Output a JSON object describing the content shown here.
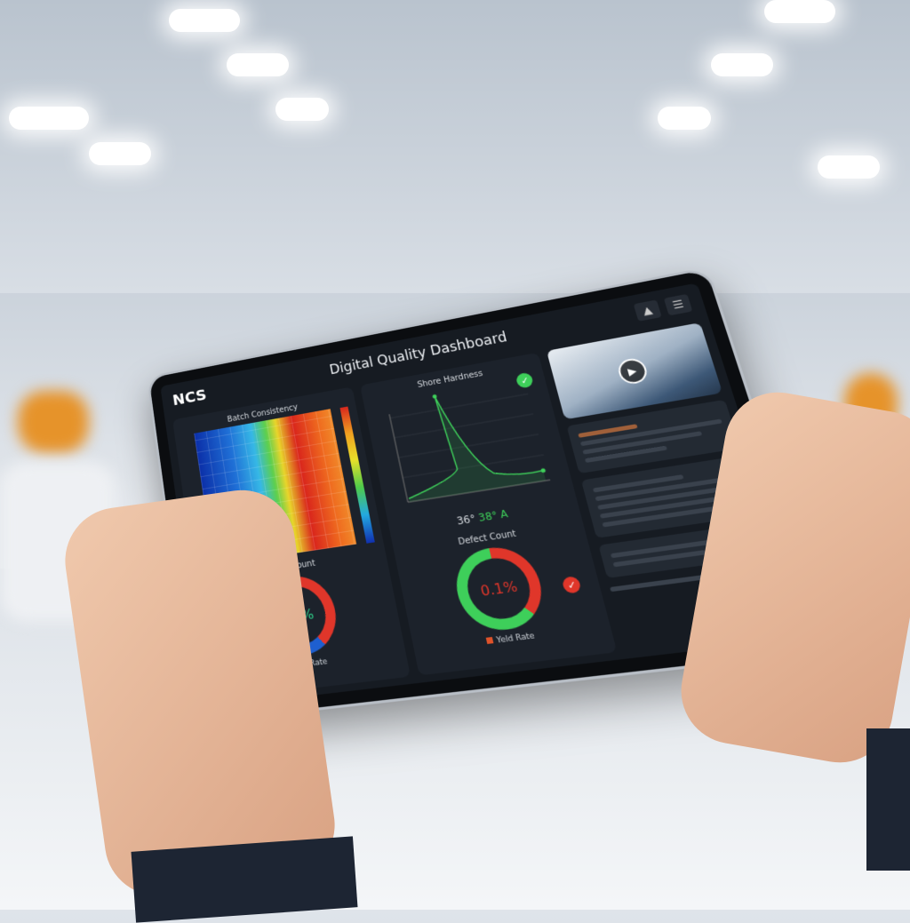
{
  "header": {
    "logo": "NCS",
    "title": "Digital Quality Dashboard",
    "icons": [
      "bell-icon",
      "menu-icon"
    ]
  },
  "batch": {
    "title": "Batch Consistency",
    "colormap": [
      "#0b2fa8",
      "#36b8e6",
      "#5ccf4f",
      "#e8d52b",
      "#d9261c"
    ]
  },
  "shore": {
    "title": "Shore Hardness",
    "readout_a": "36°",
    "readout_b": "38° A",
    "status": "check-icon",
    "accent": "#3ecf5a"
  },
  "defect_left": {
    "title": "Defect Count",
    "value": "0.1%",
    "legend": "Yeld Rate",
    "legend_color": "#1fb59a"
  },
  "defect_right": {
    "title": "Defect Count",
    "value": "0.1%",
    "legend": "Yeld Rate",
    "legend_color": "#e0532a",
    "status": "check-icon"
  },
  "video": {
    "icon": "play-icon"
  }
}
